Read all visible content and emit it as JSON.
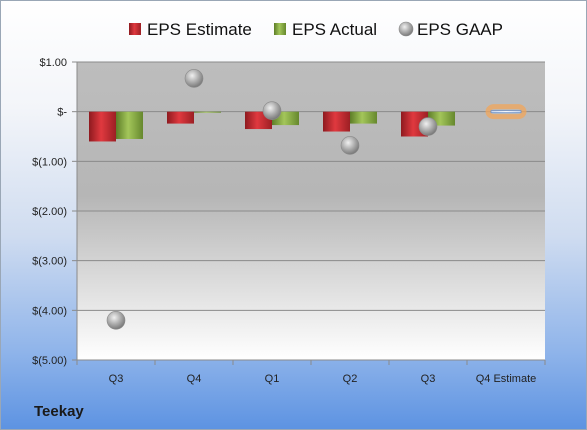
{
  "company": "Teekay",
  "colors": {
    "estimate": "#c0272d",
    "actual": "#7fa33c",
    "gaap": "#a6a6a6",
    "highlight": "#f2a65a"
  },
  "chart_data": {
    "type": "bar",
    "categories": [
      "Q3",
      "Q4",
      "Q1",
      "Q2",
      "Q3",
      "Q4 Estimate"
    ],
    "series": [
      {
        "name": "EPS Estimate",
        "kind": "bar",
        "values": [
          -0.6,
          -0.24,
          -0.35,
          -0.4,
          -0.5,
          0.02
        ]
      },
      {
        "name": "EPS Actual",
        "kind": "bar",
        "values": [
          -0.55,
          -0.02,
          -0.27,
          -0.24,
          -0.28,
          null
        ]
      },
      {
        "name": "EPS GAAP",
        "kind": "scatter",
        "values": [
          -4.2,
          0.67,
          0.02,
          -0.68,
          -0.3,
          null
        ]
      }
    ],
    "ylim": [
      -5,
      1
    ],
    "yticks": [
      1,
      0,
      -1,
      -2,
      -3,
      -4,
      -5
    ],
    "ytick_labels": [
      "$1.00",
      "$-",
      "$(1.00)",
      "$(2.00)",
      "$(3.00)",
      "$(4.00)",
      "$(5.00)"
    ],
    "legend_position": "top",
    "grid": true
  }
}
